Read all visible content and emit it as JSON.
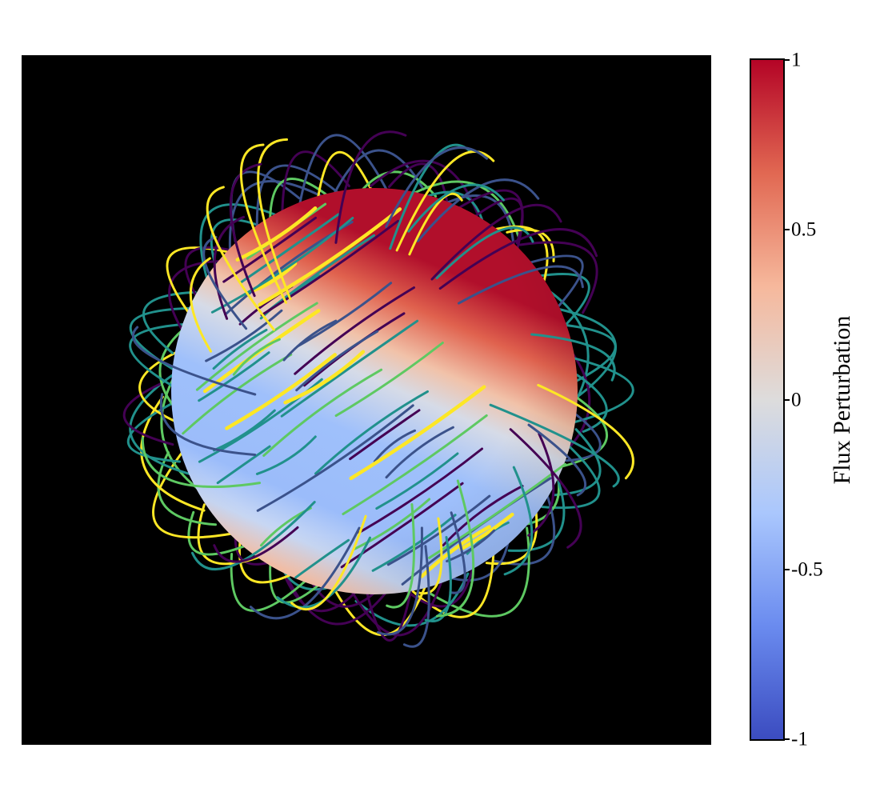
{
  "figure": {
    "background": "#000000",
    "sphere": {
      "description_colors": {
        "positive": "#b40426",
        "neutral": "#dddcdc",
        "negative": "#3b4cc0"
      }
    },
    "field_lines": {
      "colormap": [
        "#440154",
        "#3b528b",
        "#21918c",
        "#5ec962",
        "#fde725"
      ]
    }
  },
  "colorbar": {
    "label": "Flux Perturbation",
    "vmin": -1,
    "vmax": 1,
    "ticks": [
      {
        "value": 1,
        "label": "1"
      },
      {
        "value": 0.5,
        "label": "0.5"
      },
      {
        "value": 0,
        "label": "0"
      },
      {
        "value": -0.5,
        "label": "-0.5"
      },
      {
        "value": -1,
        "label": "-1"
      }
    ],
    "colormap": [
      "#3b4cc0",
      "#6a8bef",
      "#aac7fd",
      "#dddcdc",
      "#f6b89c",
      "#e16852",
      "#b40426"
    ]
  }
}
